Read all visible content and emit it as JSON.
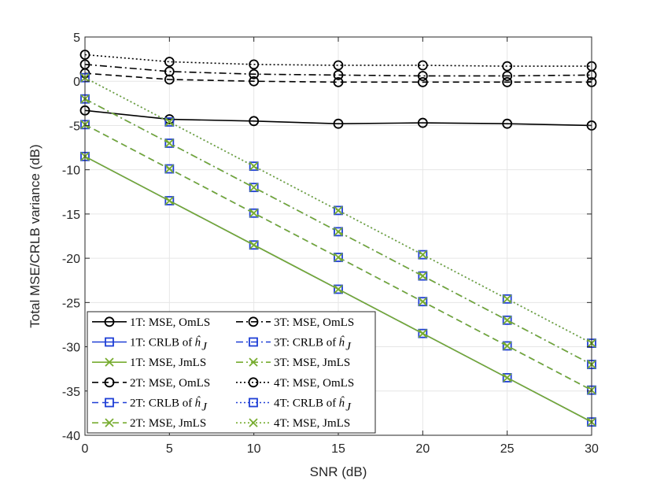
{
  "chart_data": {
    "type": "line",
    "title": "",
    "xlabel": "SNR (dB)",
    "ylabel": "Total MSE/CRLB variance (dB)",
    "xlim": [
      0,
      30
    ],
    "ylim": [
      -40,
      5
    ],
    "xticks": [
      0,
      5,
      10,
      15,
      20,
      25,
      30
    ],
    "yticks": [
      5,
      0,
      -5,
      -10,
      -15,
      -20,
      -25,
      -30,
      -35,
      -40
    ],
    "grid": true,
    "legend_position": "bottom-left",
    "x": [
      0,
      5,
      10,
      15,
      20,
      25,
      30
    ],
    "series": [
      {
        "name": "1T: MSE, OmLS",
        "label": "1T: MSE, OmLS",
        "values": [
          -3.3,
          -4.3,
          -4.5,
          -4.8,
          -4.7,
          -4.8,
          -5.0
        ],
        "color": "#000000",
        "dash": "solid",
        "marker": "circle"
      },
      {
        "name": "1T: CRLB of ĥ_J",
        "label": "1T: CRLB of ",
        "values": [
          -8.5,
          -13.5,
          -18.5,
          -23.5,
          -28.5,
          -33.5,
          -38.5
        ],
        "color": "#1f3fd6",
        "dash": "solid",
        "marker": "square"
      },
      {
        "name": "1T: MSE, JmLS",
        "label": "1T: MSE, JmLS",
        "values": [
          -8.5,
          -13.5,
          -18.5,
          -23.5,
          -28.5,
          -33.5,
          -38.5
        ],
        "color": "#77ac30",
        "dash": "solid",
        "marker": "x"
      },
      {
        "name": "2T: MSE, OmLS",
        "label": "2T: MSE, OmLS",
        "values": [
          0.9,
          0.2,
          0.0,
          -0.1,
          -0.1,
          -0.1,
          -0.1
        ],
        "color": "#000000",
        "dash": "dashed",
        "marker": "circle"
      },
      {
        "name": "2T: CRLB of ĥ_J",
        "label": "2T: CRLB of ",
        "values": [
          -4.9,
          -9.9,
          -14.9,
          -19.9,
          -24.9,
          -29.9,
          -34.9
        ],
        "color": "#1f3fd6",
        "dash": "dashed",
        "marker": "square"
      },
      {
        "name": "2T: MSE, JmLS",
        "label": "2T: MSE, JmLS",
        "values": [
          -4.9,
          -9.9,
          -14.9,
          -19.9,
          -24.9,
          -29.9,
          -34.9
        ],
        "color": "#77ac30",
        "dash": "dashed",
        "marker": "x"
      },
      {
        "name": "3T: MSE, OmLS",
        "label": "3T: MSE, OmLS",
        "values": [
          1.9,
          1.1,
          0.8,
          0.7,
          0.6,
          0.6,
          0.7
        ],
        "color": "#000000",
        "dash": "dashdot",
        "marker": "circle"
      },
      {
        "name": "3T: CRLB of ĥ_J",
        "label": "3T: CRLB of ",
        "values": [
          -2.0,
          -7.0,
          -12.0,
          -17.0,
          -22.0,
          -27.0,
          -32.0
        ],
        "color": "#1f3fd6",
        "dash": "dashdot",
        "marker": "square"
      },
      {
        "name": "3T: MSE, JmLS",
        "label": "3T: MSE, JmLS",
        "values": [
          -2.0,
          -7.0,
          -12.0,
          -17.0,
          -22.0,
          -27.0,
          -32.0
        ],
        "color": "#77ac30",
        "dash": "dashdot",
        "marker": "x"
      },
      {
        "name": "4T: MSE, OmLS",
        "label": "4T: MSE, OmLS",
        "values": [
          3.0,
          2.2,
          1.9,
          1.8,
          1.8,
          1.7,
          1.7
        ],
        "color": "#000000",
        "dash": "dotted",
        "marker": "circle"
      },
      {
        "name": "4T: CRLB of ĥ_J",
        "label": "4T: CRLB of ",
        "values": [
          0.4,
          -4.6,
          -9.6,
          -14.6,
          -19.6,
          -24.6,
          -29.6
        ],
        "color": "#1f3fd6",
        "dash": "dotted",
        "marker": "square"
      },
      {
        "name": "4T: MSE, JmLS",
        "label": "4T: MSE, JmLS",
        "values": [
          0.4,
          -4.6,
          -9.6,
          -14.6,
          -19.6,
          -24.6,
          -29.6
        ],
        "color": "#77ac30",
        "dash": "dotted",
        "marker": "x"
      }
    ]
  }
}
